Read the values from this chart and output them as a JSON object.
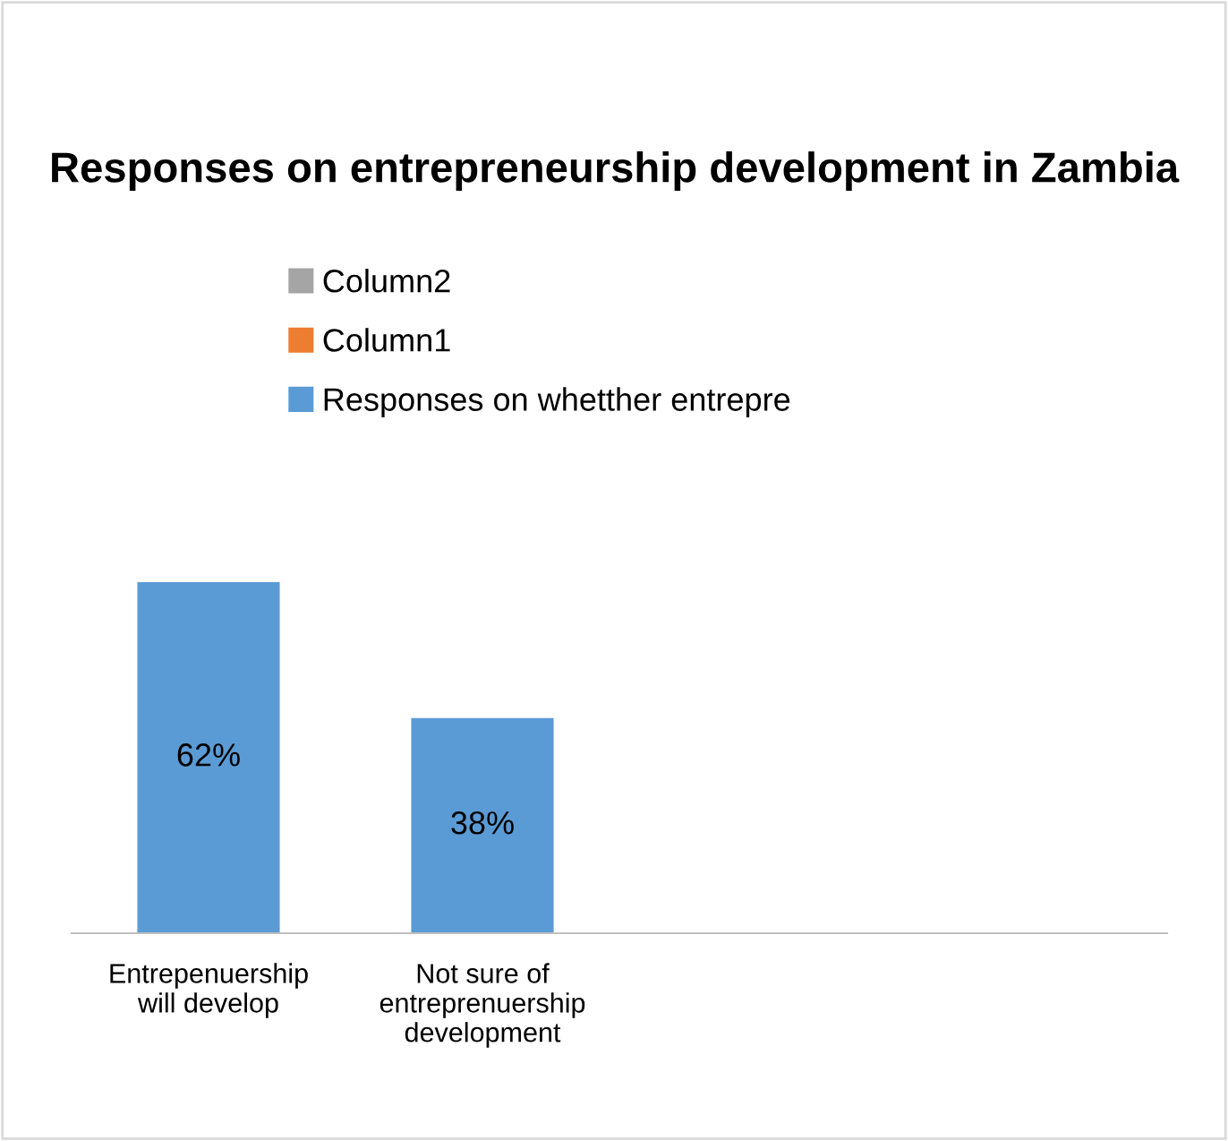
{
  "chart_data": {
    "type": "bar",
    "title": "Responses on entrepreneurship development in Zambia",
    "categories": [
      "Entrepenuership\nwill develop",
      "Not sure of\nentreprenuership\ndevelopment",
      null,
      null
    ],
    "series": [
      {
        "name": "Responses on whetther entrepre",
        "color": "#5b9bd5",
        "values": [
          62,
          38,
          null,
          null
        ],
        "value_labels": [
          "62%",
          "38%",
          null,
          null
        ]
      },
      {
        "name": "Column1",
        "color": "#ed7d31",
        "values": [
          null,
          null,
          null,
          null
        ]
      },
      {
        "name": "Column2",
        "color": "#a5a5a5",
        "values": [
          null,
          null,
          null,
          null
        ]
      }
    ],
    "legend": "top",
    "grid": false
  }
}
